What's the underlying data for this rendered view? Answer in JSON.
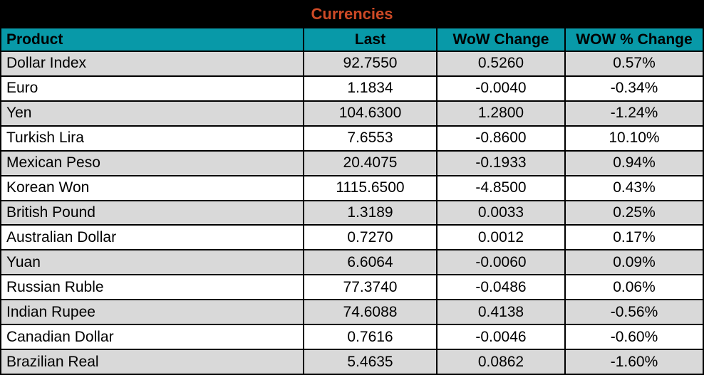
{
  "title": "Currencies",
  "colors": {
    "title_bg": "#000000",
    "title_text": "#CE4A26",
    "header_bg": "#0899A8",
    "header_text": "#000000",
    "row_bg": "#FFFFFF",
    "row_alt_bg": "#D9D9D9",
    "border": "#000000",
    "cell_text": "#000000"
  },
  "chart_data": {
    "type": "table",
    "title": "Currencies",
    "columns": [
      "Product",
      "Last",
      "WoW Change",
      "WOW % Change"
    ],
    "rows": [
      [
        "Dollar Index",
        "92.7550",
        "0.5260",
        "0.57%"
      ],
      [
        "Euro",
        "1.1834",
        "-0.0040",
        "-0.34%"
      ],
      [
        "Yen",
        "104.6300",
        "1.2800",
        "-1.24%"
      ],
      [
        "Turkish Lira",
        "7.6553",
        "-0.8600",
        "10.10%"
      ],
      [
        "Mexican Peso",
        "20.4075",
        "-0.1933",
        "0.94%"
      ],
      [
        "Korean Won",
        "1115.6500",
        "-4.8500",
        "0.43%"
      ],
      [
        "British Pound",
        "1.3189",
        "0.0033",
        "0.25%"
      ],
      [
        "Australian Dollar",
        "0.7270",
        "0.0012",
        "0.17%"
      ],
      [
        "Yuan",
        "6.6064",
        "-0.0060",
        "0.09%"
      ],
      [
        "Russian Ruble",
        "77.3740",
        "-0.0486",
        "0.06%"
      ],
      [
        "Indian Rupee",
        "74.6088",
        "0.4138",
        "-0.56%"
      ],
      [
        "Canadian Dollar",
        "0.7616",
        "-0.0046",
        "-0.60%"
      ],
      [
        "Brazilian Real",
        "5.4635",
        "0.0862",
        "-1.60%"
      ]
    ]
  }
}
